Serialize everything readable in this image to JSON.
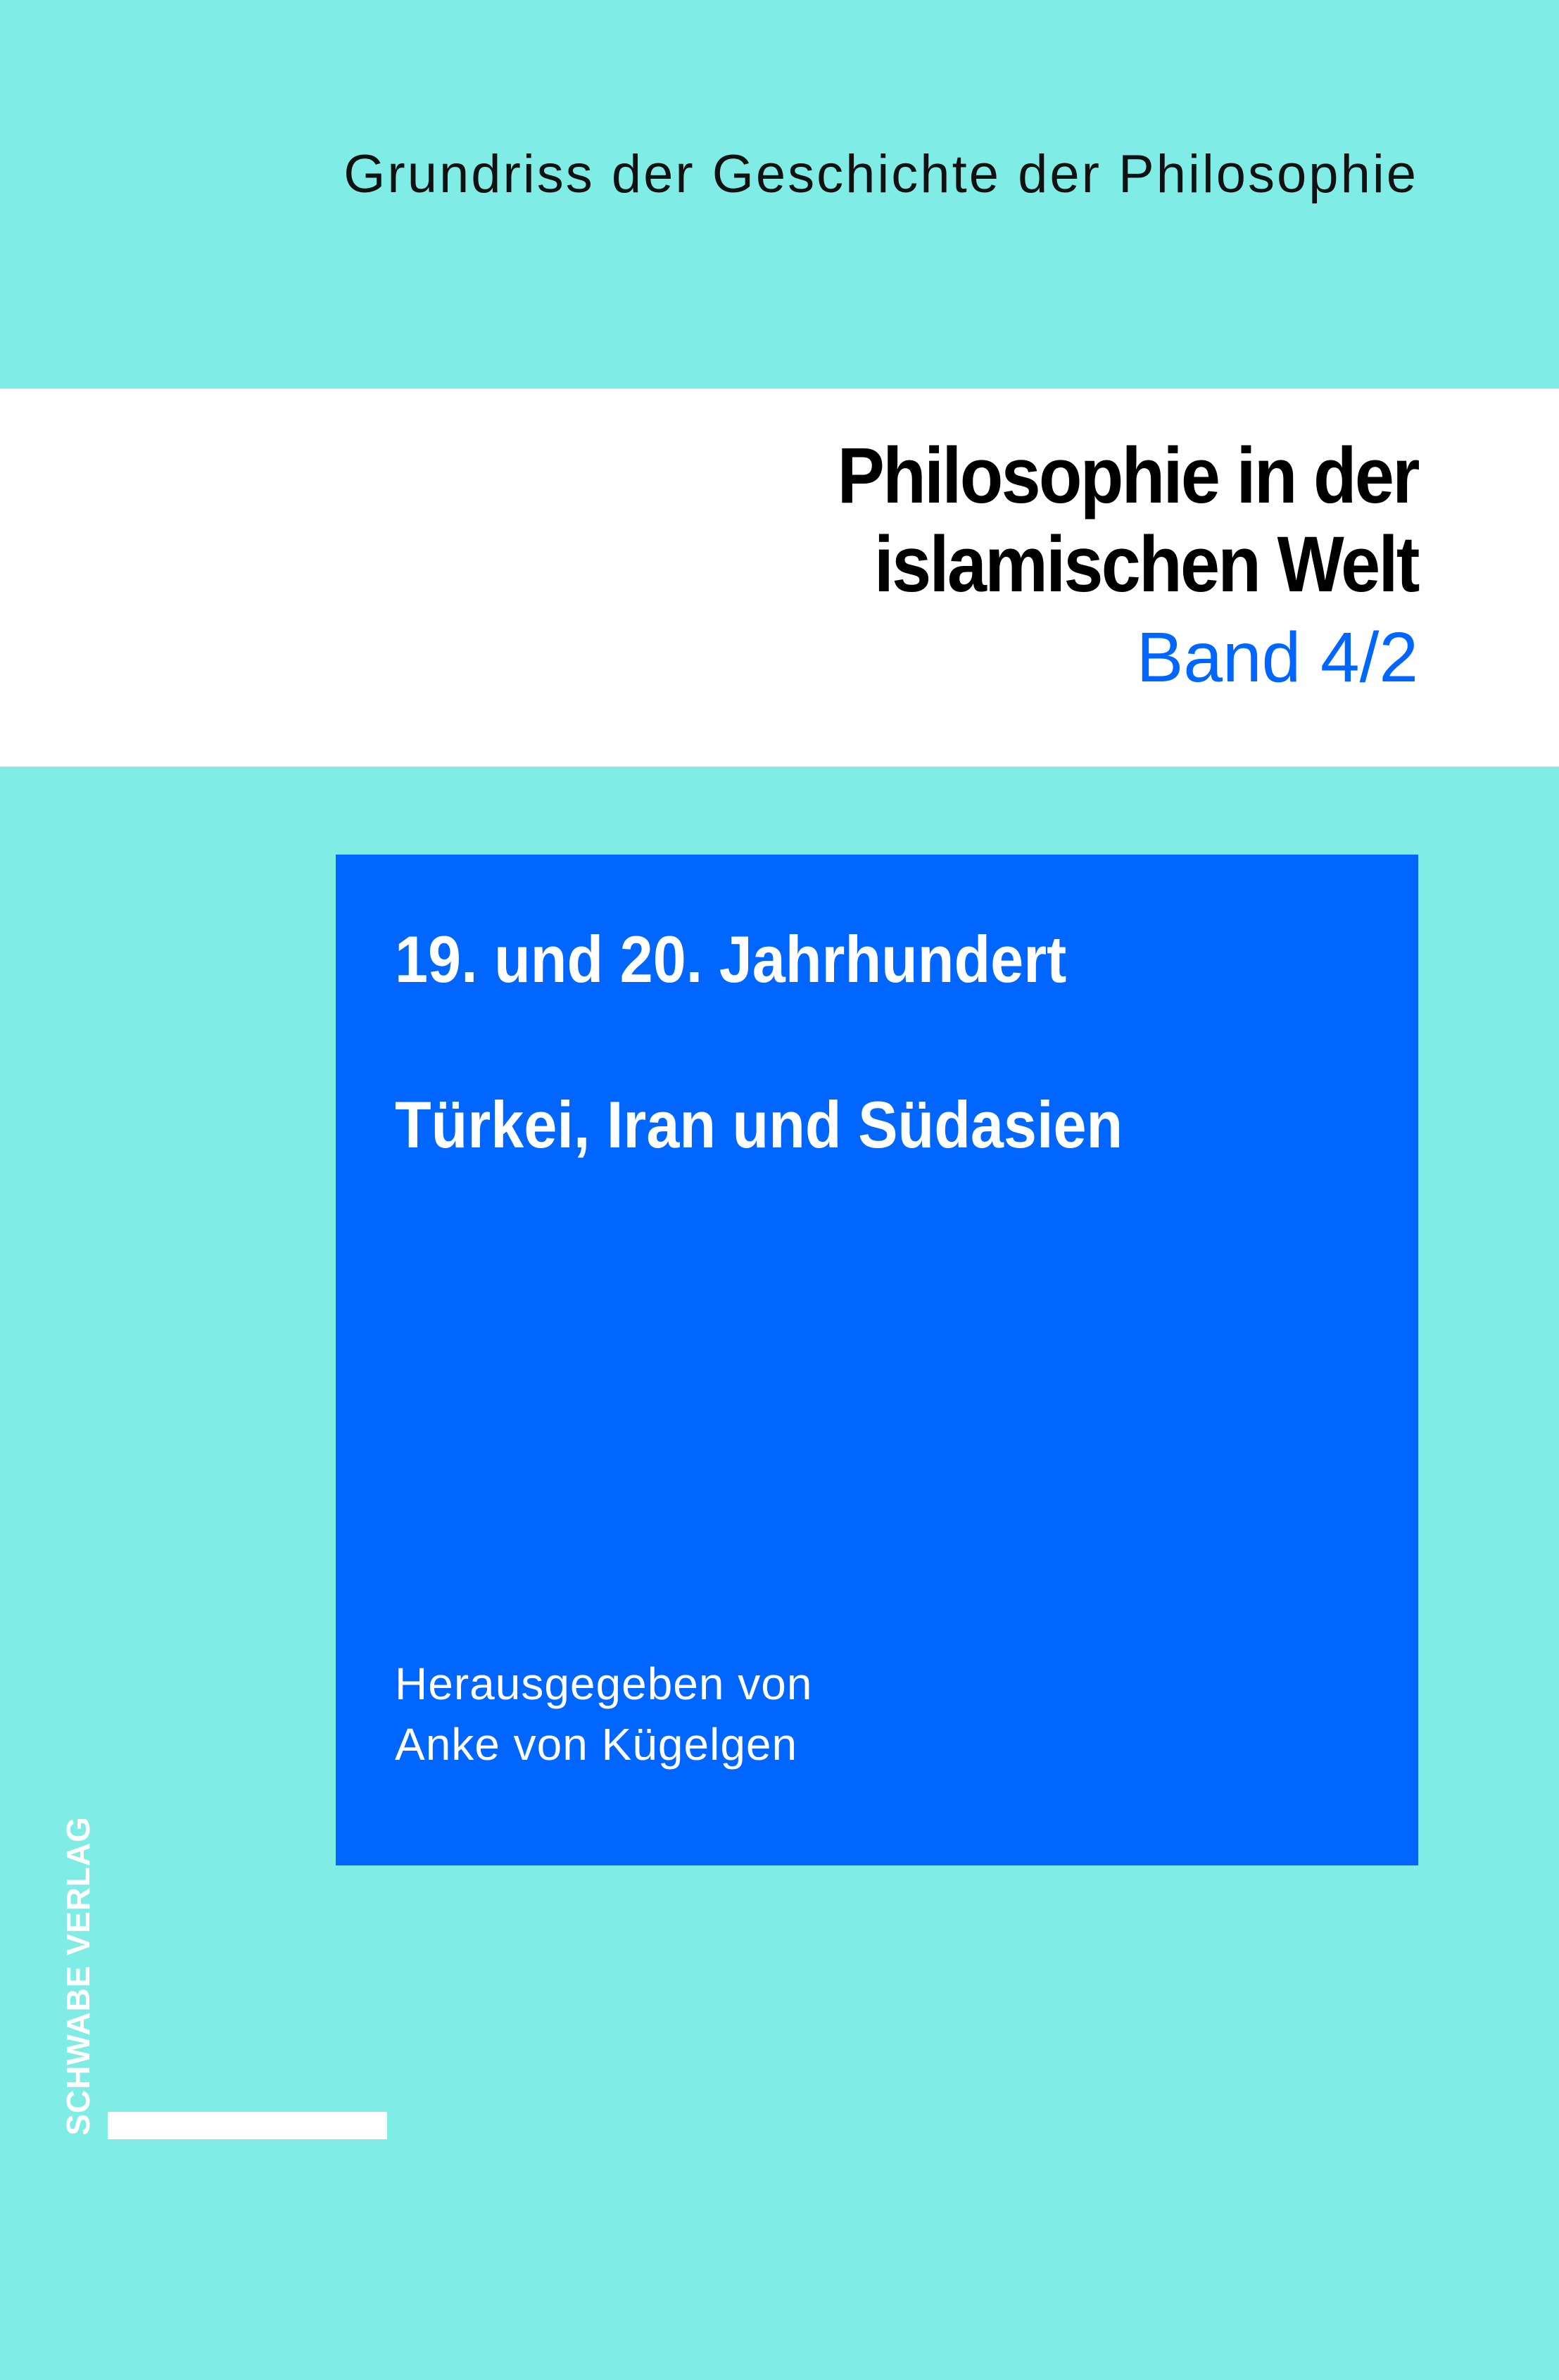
{
  "colors": {
    "background": "#80ECE6",
    "band": "#FFFFFF",
    "accent": "#0066FF",
    "title": "#000000"
  },
  "series": "Grundriss der Geschichte der Philosophie",
  "title": {
    "line1": "Philosophie in der",
    "line2": "islamischen Welt",
    "volume": "Band 4/2"
  },
  "box": {
    "subtitle1": "19. und 20. Jahrhundert",
    "subtitle2": "Türkei, Iran und Südasien",
    "editor_line1": "Herausgegeben von",
    "editor_line2": "Anke von Kügelgen"
  },
  "publisher": "SCHWABE VERLAG"
}
